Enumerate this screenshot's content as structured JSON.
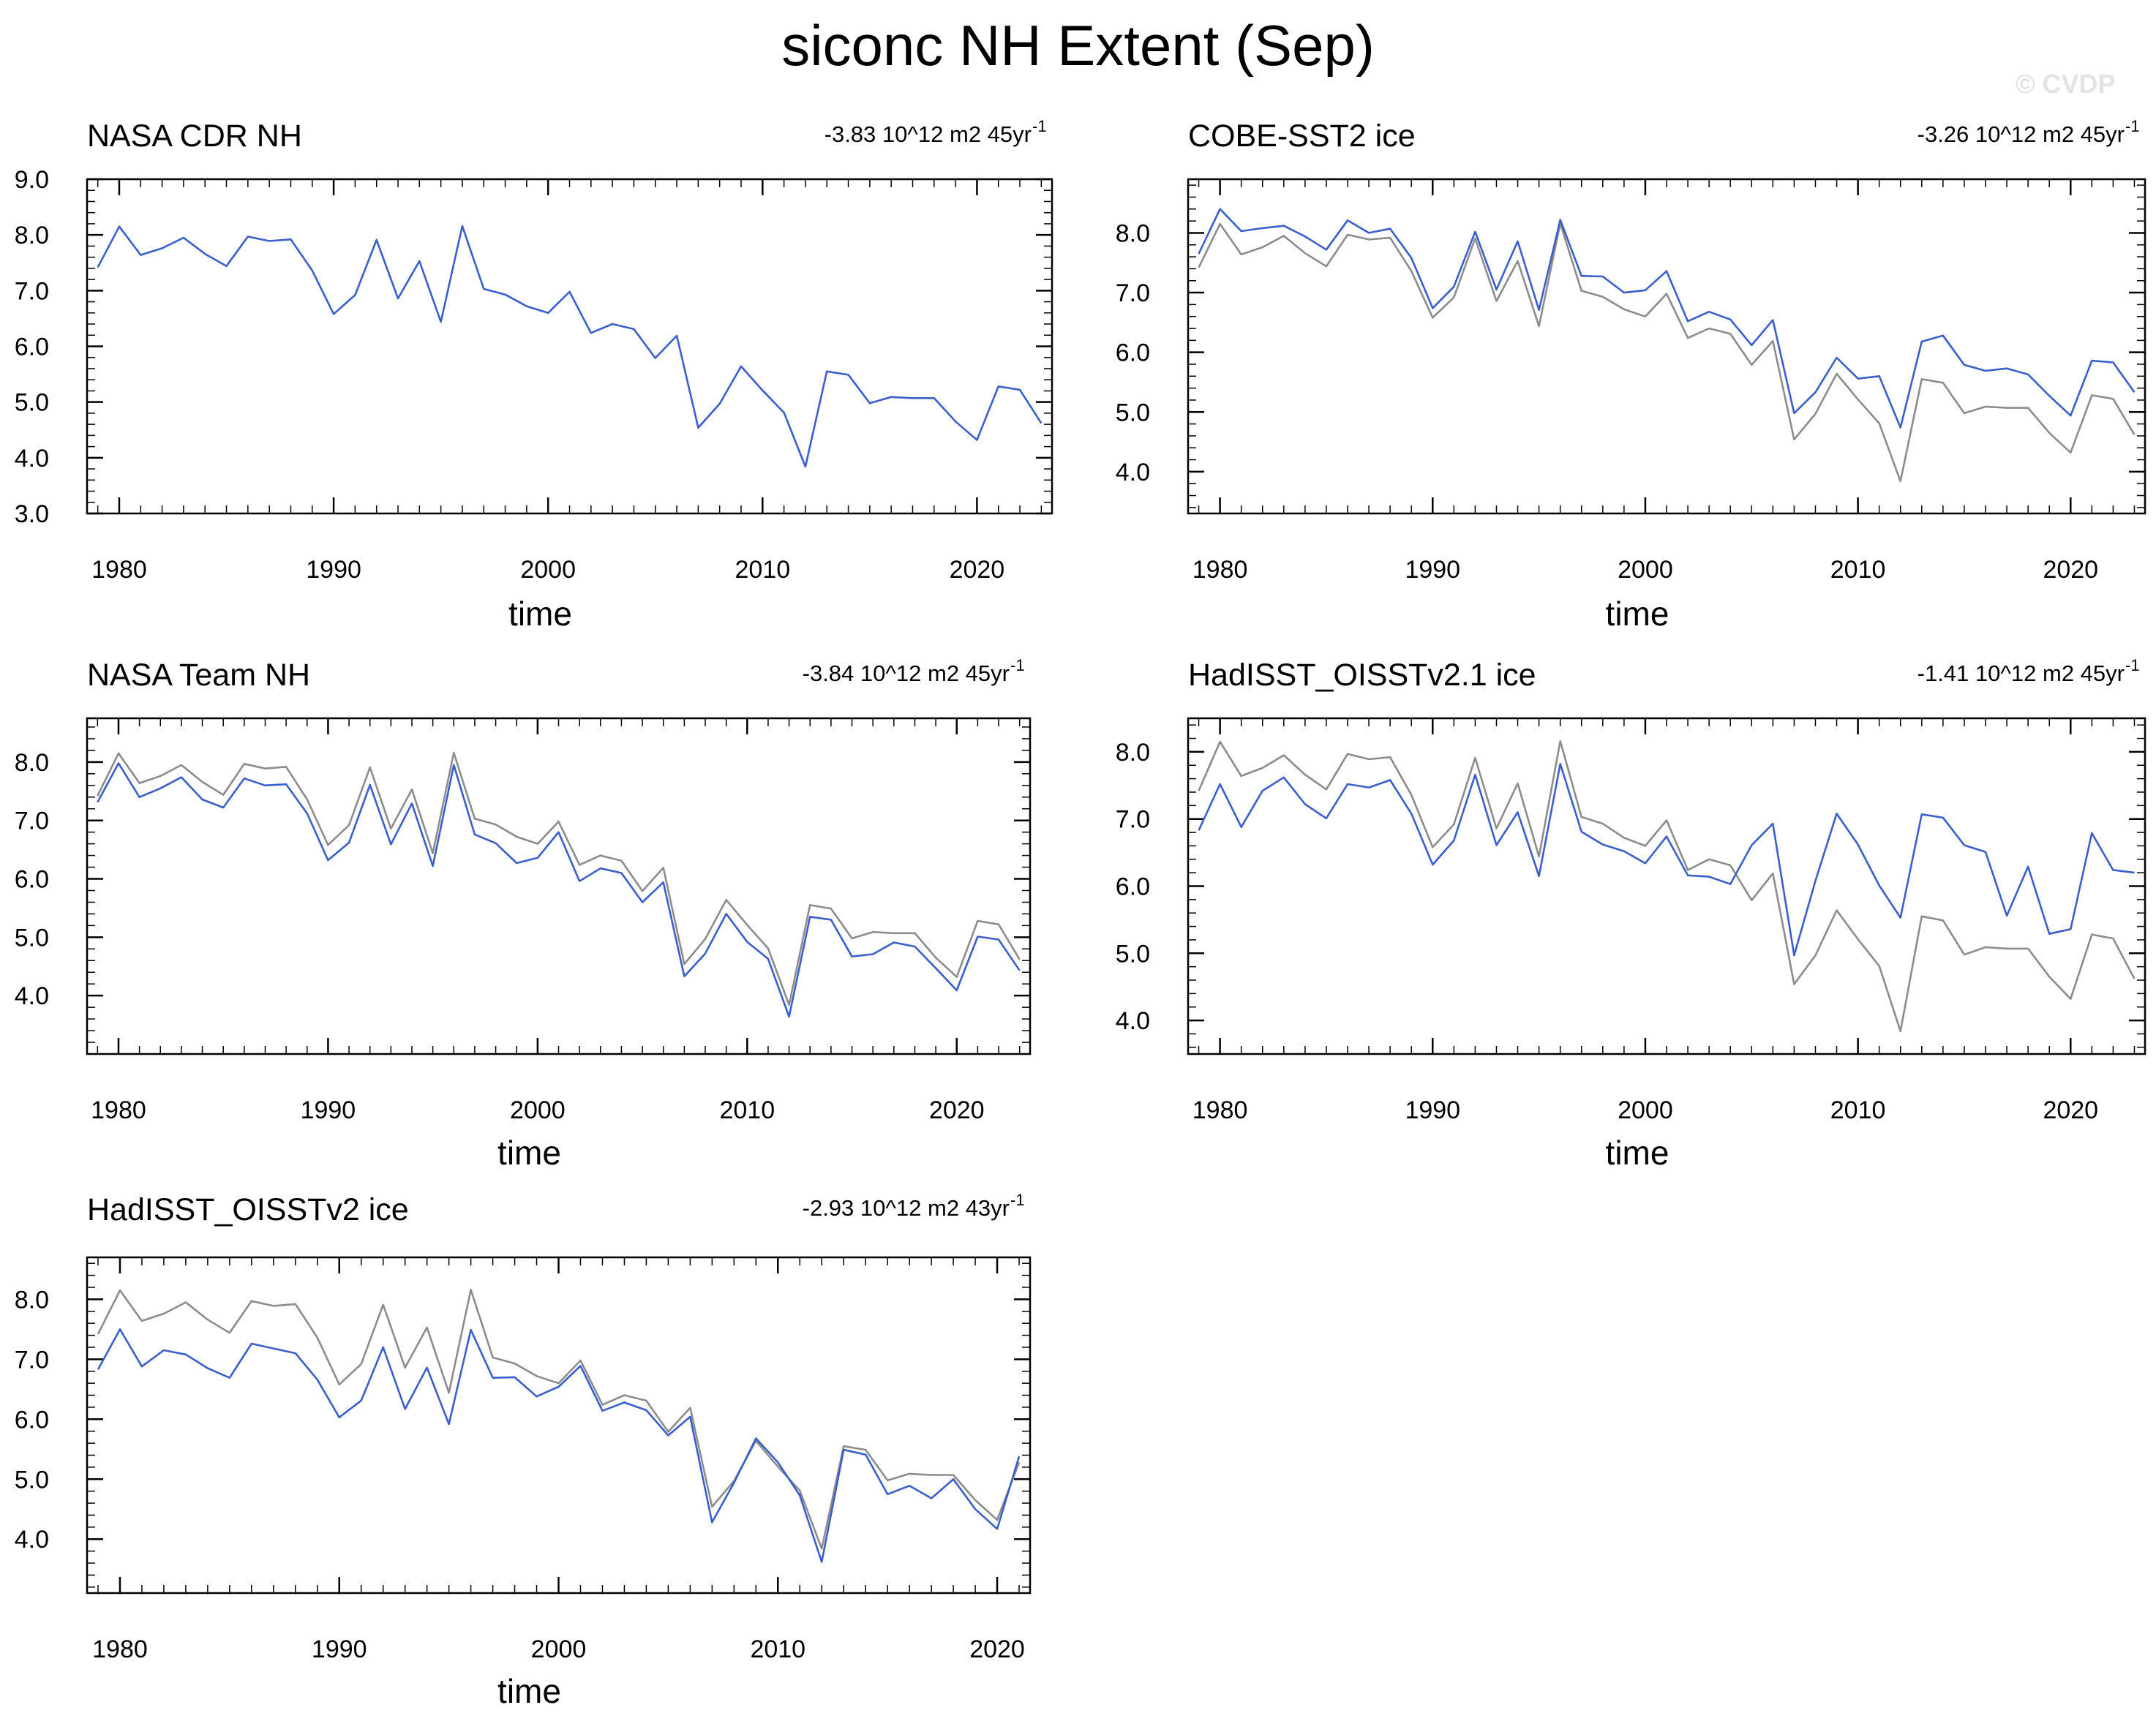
{
  "title": "siconc NH Extent (Sep)",
  "watermark": "© CVDP",
  "colors": {
    "primary": "#3a5fcd",
    "reference": "#8c8c8c",
    "axis": "#000000"
  },
  "chart_data": [
    {
      "type": "line",
      "title": "NASA CDR NH",
      "trend_label": "-3.83 10^12 m2 45yr",
      "trend_sup": "-1",
      "xlabel": "time",
      "ylabel": "",
      "xlim": [
        1978.5,
        2023.5
      ],
      "ylim": [
        3.0,
        9.0
      ],
      "xticks": [
        1980,
        1990,
        2000,
        2010,
        2020
      ],
      "yticks": [
        3.0,
        4.0,
        5.0,
        6.0,
        7.0,
        8.0,
        9.0
      ],
      "series": [
        {
          "role": "primary",
          "x_start": 1979,
          "values": [
            7.42,
            8.15,
            7.64,
            7.76,
            7.95,
            7.66,
            7.44,
            7.97,
            7.89,
            7.92,
            7.36,
            6.58,
            6.92,
            7.91,
            6.86,
            7.53,
            6.44,
            8.16,
            7.03,
            6.93,
            6.72,
            6.6,
            6.98,
            6.24,
            6.4,
            6.31,
            5.79,
            6.19,
            4.54,
            4.97,
            5.64,
            5.21,
            4.81,
            3.84,
            5.55,
            5.49,
            4.98,
            5.09,
            5.07,
            5.07,
            4.65,
            4.32,
            5.28,
            5.22,
            4.62
          ]
        }
      ]
    },
    {
      "type": "line",
      "title": "COBE-SST2 ice",
      "trend_label": "-3.26 10^12 m2 45yr",
      "trend_sup": "-1",
      "xlabel": "time",
      "ylabel": "",
      "xlim": [
        1978.5,
        2023.5
      ],
      "ylim": [
        3.3,
        8.9
      ],
      "xticks": [
        1980,
        1990,
        2000,
        2010,
        2020
      ],
      "yticks": [
        4.0,
        5.0,
        6.0,
        7.0,
        8.0
      ],
      "series": [
        {
          "role": "reference",
          "x_start": 1979,
          "values": [
            7.42,
            8.15,
            7.64,
            7.76,
            7.95,
            7.66,
            7.44,
            7.97,
            7.89,
            7.92,
            7.36,
            6.58,
            6.92,
            7.91,
            6.86,
            7.53,
            6.44,
            8.16,
            7.03,
            6.93,
            6.72,
            6.6,
            6.98,
            6.24,
            6.4,
            6.31,
            5.79,
            6.19,
            4.54,
            4.97,
            5.64,
            5.21,
            4.81,
            3.84,
            5.55,
            5.49,
            4.98,
            5.09,
            5.07,
            5.07,
            4.65,
            4.32,
            5.28,
            5.22,
            4.62
          ]
        },
        {
          "role": "primary",
          "x_start": 1979,
          "values": [
            7.65,
            8.4,
            8.03,
            8.08,
            8.12,
            7.94,
            7.72,
            8.21,
            8.0,
            8.07,
            7.58,
            6.74,
            7.1,
            8.02,
            7.05,
            7.86,
            6.71,
            8.22,
            7.28,
            7.27,
            7.0,
            7.04,
            7.36,
            6.52,
            6.68,
            6.55,
            6.12,
            6.54,
            4.98,
            5.33,
            5.91,
            5.56,
            5.6,
            4.74,
            6.18,
            6.28,
            5.79,
            5.69,
            5.73,
            5.63,
            5.27,
            4.94,
            5.86,
            5.83,
            5.33
          ]
        }
      ]
    },
    {
      "type": "line",
      "title": "NASA Team NH",
      "trend_label": "-3.84 10^12 m2 45yr",
      "trend_sup": "-1",
      "xlabel": "time",
      "ylabel": "",
      "xlim": [
        1978.5,
        2023.5
      ],
      "ylim": [
        3.0,
        8.75
      ],
      "xticks": [
        1980,
        1990,
        2000,
        2010,
        2020
      ],
      "yticks": [
        4.0,
        5.0,
        6.0,
        7.0,
        8.0
      ],
      "series": [
        {
          "role": "reference",
          "x_start": 1979,
          "values": [
            7.42,
            8.15,
            7.64,
            7.76,
            7.95,
            7.66,
            7.44,
            7.97,
            7.89,
            7.92,
            7.36,
            6.58,
            6.92,
            7.91,
            6.86,
            7.53,
            6.44,
            8.16,
            7.03,
            6.93,
            6.72,
            6.6,
            6.98,
            6.24,
            6.4,
            6.31,
            5.79,
            6.19,
            4.54,
            4.97,
            5.64,
            5.21,
            4.81,
            3.84,
            5.55,
            5.49,
            4.98,
            5.09,
            5.07,
            5.07,
            4.65,
            4.32,
            5.28,
            5.22,
            4.62
          ]
        },
        {
          "role": "primary",
          "x_start": 1979,
          "values": [
            7.31,
            7.98,
            7.4,
            7.55,
            7.74,
            7.36,
            7.22,
            7.72,
            7.6,
            7.62,
            7.12,
            6.32,
            6.62,
            7.61,
            6.59,
            7.29,
            6.22,
            7.95,
            6.76,
            6.61,
            6.27,
            6.36,
            6.8,
            5.96,
            6.18,
            6.1,
            5.6,
            5.94,
            4.33,
            4.72,
            5.4,
            4.92,
            4.63,
            3.64,
            5.35,
            5.3,
            4.67,
            4.71,
            4.91,
            4.84,
            4.47,
            4.09,
            5.01,
            4.96,
            4.43
          ]
        }
      ]
    },
    {
      "type": "line",
      "title": "HadISST_OISSTv2.1 ice",
      "trend_label": "-1.41 10^12 m2 45yr",
      "trend_sup": "-1",
      "xlabel": "time",
      "ylabel": "",
      "xlim": [
        1978.5,
        2023.5
      ],
      "ylim": [
        3.5,
        8.5
      ],
      "xticks": [
        1980,
        1990,
        2000,
        2010,
        2020
      ],
      "yticks": [
        4.0,
        5.0,
        6.0,
        7.0,
        8.0
      ],
      "series": [
        {
          "role": "reference",
          "x_start": 1979,
          "values": [
            7.42,
            8.15,
            7.64,
            7.76,
            7.95,
            7.66,
            7.44,
            7.97,
            7.89,
            7.92,
            7.36,
            6.58,
            6.92,
            7.91,
            6.86,
            7.53,
            6.44,
            8.16,
            7.03,
            6.93,
            6.72,
            6.6,
            6.98,
            6.24,
            6.4,
            6.31,
            5.79,
            6.19,
            4.54,
            4.97,
            5.64,
            5.21,
            4.81,
            3.84,
            5.55,
            5.49,
            4.98,
            5.09,
            5.07,
            5.07,
            4.65,
            4.32,
            5.28,
            5.22,
            4.62
          ]
        },
        {
          "role": "primary",
          "x_start": 1979,
          "values": [
            6.83,
            7.52,
            6.88,
            7.42,
            7.62,
            7.22,
            7.01,
            7.52,
            7.47,
            7.58,
            7.08,
            6.32,
            6.68,
            7.66,
            6.61,
            7.1,
            6.15,
            7.82,
            6.81,
            6.62,
            6.52,
            6.34,
            6.74,
            6.16,
            6.14,
            6.03,
            6.61,
            6.93,
            4.97,
            6.08,
            7.08,
            6.62,
            6.01,
            5.53,
            7.07,
            7.02,
            6.61,
            6.51,
            5.56,
            6.29,
            5.29,
            5.36,
            6.79,
            6.24,
            6.2
          ]
        }
      ]
    },
    {
      "type": "line",
      "title": "HadISST_OISSTv2 ice",
      "trend_label": "-2.93 10^12 m2 43yr",
      "trend_sup": "-1",
      "xlabel": "time",
      "ylabel": "",
      "xlim": [
        1978.5,
        2021.5
      ],
      "ylim": [
        3.1,
        8.7
      ],
      "xticks": [
        1980,
        1990,
        2000,
        2010,
        2020
      ],
      "yticks": [
        4.0,
        5.0,
        6.0,
        7.0,
        8.0
      ],
      "series": [
        {
          "role": "reference",
          "x_start": 1979,
          "values": [
            7.42,
            8.15,
            7.64,
            7.76,
            7.95,
            7.66,
            7.44,
            7.97,
            7.89,
            7.92,
            7.36,
            6.58,
            6.92,
            7.91,
            6.86,
            7.53,
            6.44,
            8.16,
            7.03,
            6.93,
            6.72,
            6.6,
            6.98,
            6.24,
            6.4,
            6.31,
            5.79,
            6.19,
            4.54,
            4.97,
            5.64,
            5.21,
            4.81,
            3.84,
            5.55,
            5.49,
            4.98,
            5.09,
            5.07,
            5.07,
            4.65,
            4.32,
            5.28
          ]
        },
        {
          "role": "primary",
          "x_start": 1979,
          "values": [
            6.83,
            7.5,
            6.88,
            7.15,
            7.08,
            6.85,
            6.69,
            7.26,
            7.18,
            7.1,
            6.66,
            6.03,
            6.31,
            7.2,
            6.17,
            6.86,
            5.92,
            7.49,
            6.69,
            6.7,
            6.38,
            6.54,
            6.89,
            6.14,
            6.28,
            6.15,
            5.73,
            6.04,
            4.28,
            4.94,
            5.68,
            5.28,
            4.73,
            3.62,
            5.49,
            5.41,
            4.75,
            4.89,
            4.68,
            5.0,
            4.5,
            4.17,
            5.38
          ]
        }
      ]
    }
  ]
}
